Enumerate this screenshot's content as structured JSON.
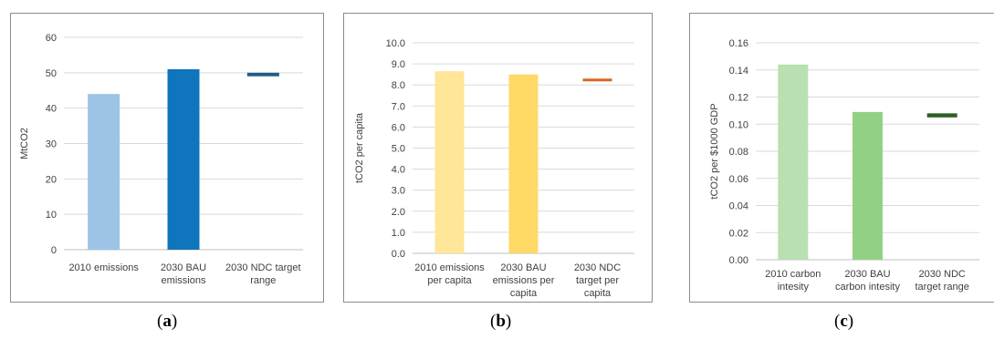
{
  "chart_data": [
    {
      "id": "a",
      "type": "bar",
      "caption_letter": "a",
      "categories": [
        [
          "2010 emissions"
        ],
        [
          "2030 BAU",
          "emissions"
        ],
        [
          "2030 NDC target",
          "range"
        ]
      ],
      "values": [
        44,
        51,
        null
      ],
      "target_range": [
        49,
        50
      ],
      "colors": [
        "#9dc3e6",
        "#0f75bd",
        "#1f5c8a"
      ],
      "ylabel": "MtCO2",
      "ylim": [
        0,
        60
      ],
      "yticks": [
        "0",
        "10",
        "20",
        "30",
        "40",
        "50",
        "60"
      ],
      "grid": true
    },
    {
      "id": "b",
      "type": "bar",
      "caption_letter": "b",
      "categories": [
        [
          "2010 emissions",
          "per capita"
        ],
        [
          "2030 BAU",
          "emissions per",
          "capita"
        ],
        [
          "2030 NDC",
          "target per",
          "capita"
        ]
      ],
      "values": [
        8.65,
        8.5,
        null
      ],
      "target_range": [
        8.2,
        8.3
      ],
      "colors": [
        "#ffe699",
        "#ffd966",
        "#d9651c"
      ],
      "ylabel": "tCO2 per capita",
      "ylim": [
        0,
        10
      ],
      "yticks": [
        "0.0",
        "1.0",
        "2.0",
        "3.0",
        "4.0",
        "5.0",
        "6.0",
        "7.0",
        "8.0",
        "9.0",
        "10.0"
      ],
      "grid": true
    },
    {
      "id": "c",
      "type": "bar",
      "caption_letter": "c",
      "categories": [
        [
          "2010 carbon",
          "intesity"
        ],
        [
          "2030 BAU",
          "carbon intesity"
        ],
        [
          "2030 NDC",
          "target range"
        ]
      ],
      "values": [
        0.144,
        0.109,
        null
      ],
      "target_range": [
        0.105,
        0.108
      ],
      "colors": [
        "#b8e0b0",
        "#92d084",
        "#2e5e24"
      ],
      "ylabel": "tCO2 per $1000 GDP",
      "ylim": [
        0,
        0.16
      ],
      "yticks": [
        "0.00",
        "0.02",
        "0.04",
        "0.06",
        "0.08",
        "0.10",
        "0.12",
        "0.14",
        "0.16"
      ],
      "grid": true
    }
  ]
}
